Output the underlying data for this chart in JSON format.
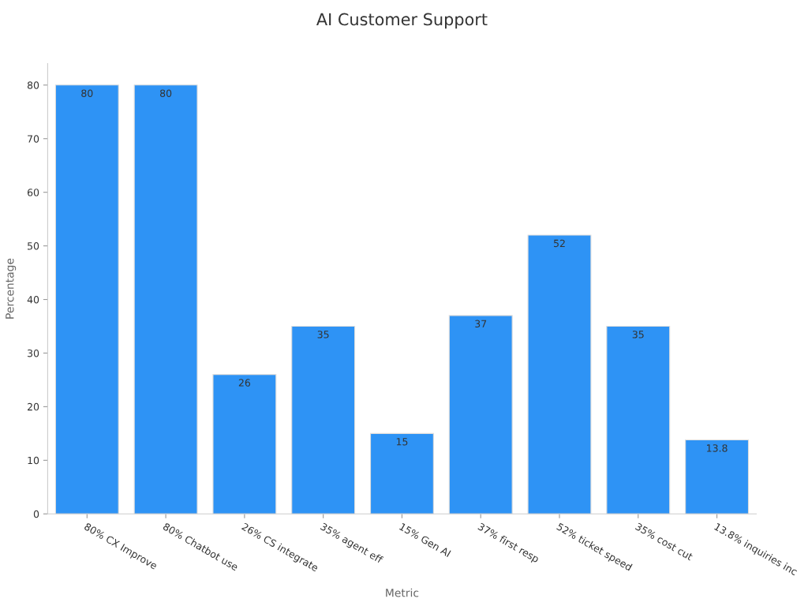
{
  "chart_data": {
    "type": "bar",
    "title": "AI Customer Support",
    "xlabel": "Metric",
    "ylabel": "Percentage",
    "categories": [
      "80% CX Improve",
      "80% Chatbot use",
      "26% CS integrate",
      "35% agent eff",
      "15% Gen AI",
      "37% first resp",
      "52% ticket speed",
      "35% cost cut",
      "13.8% inquiries inc"
    ],
    "values": [
      80,
      80,
      26,
      35,
      15,
      37,
      52,
      35,
      13.8
    ],
    "color": "#2e93f5",
    "ylim": [
      0,
      84
    ],
    "yticks": [
      0,
      10,
      20,
      30,
      40,
      50,
      60,
      70,
      80
    ],
    "grid": false,
    "data_labels": true
  }
}
